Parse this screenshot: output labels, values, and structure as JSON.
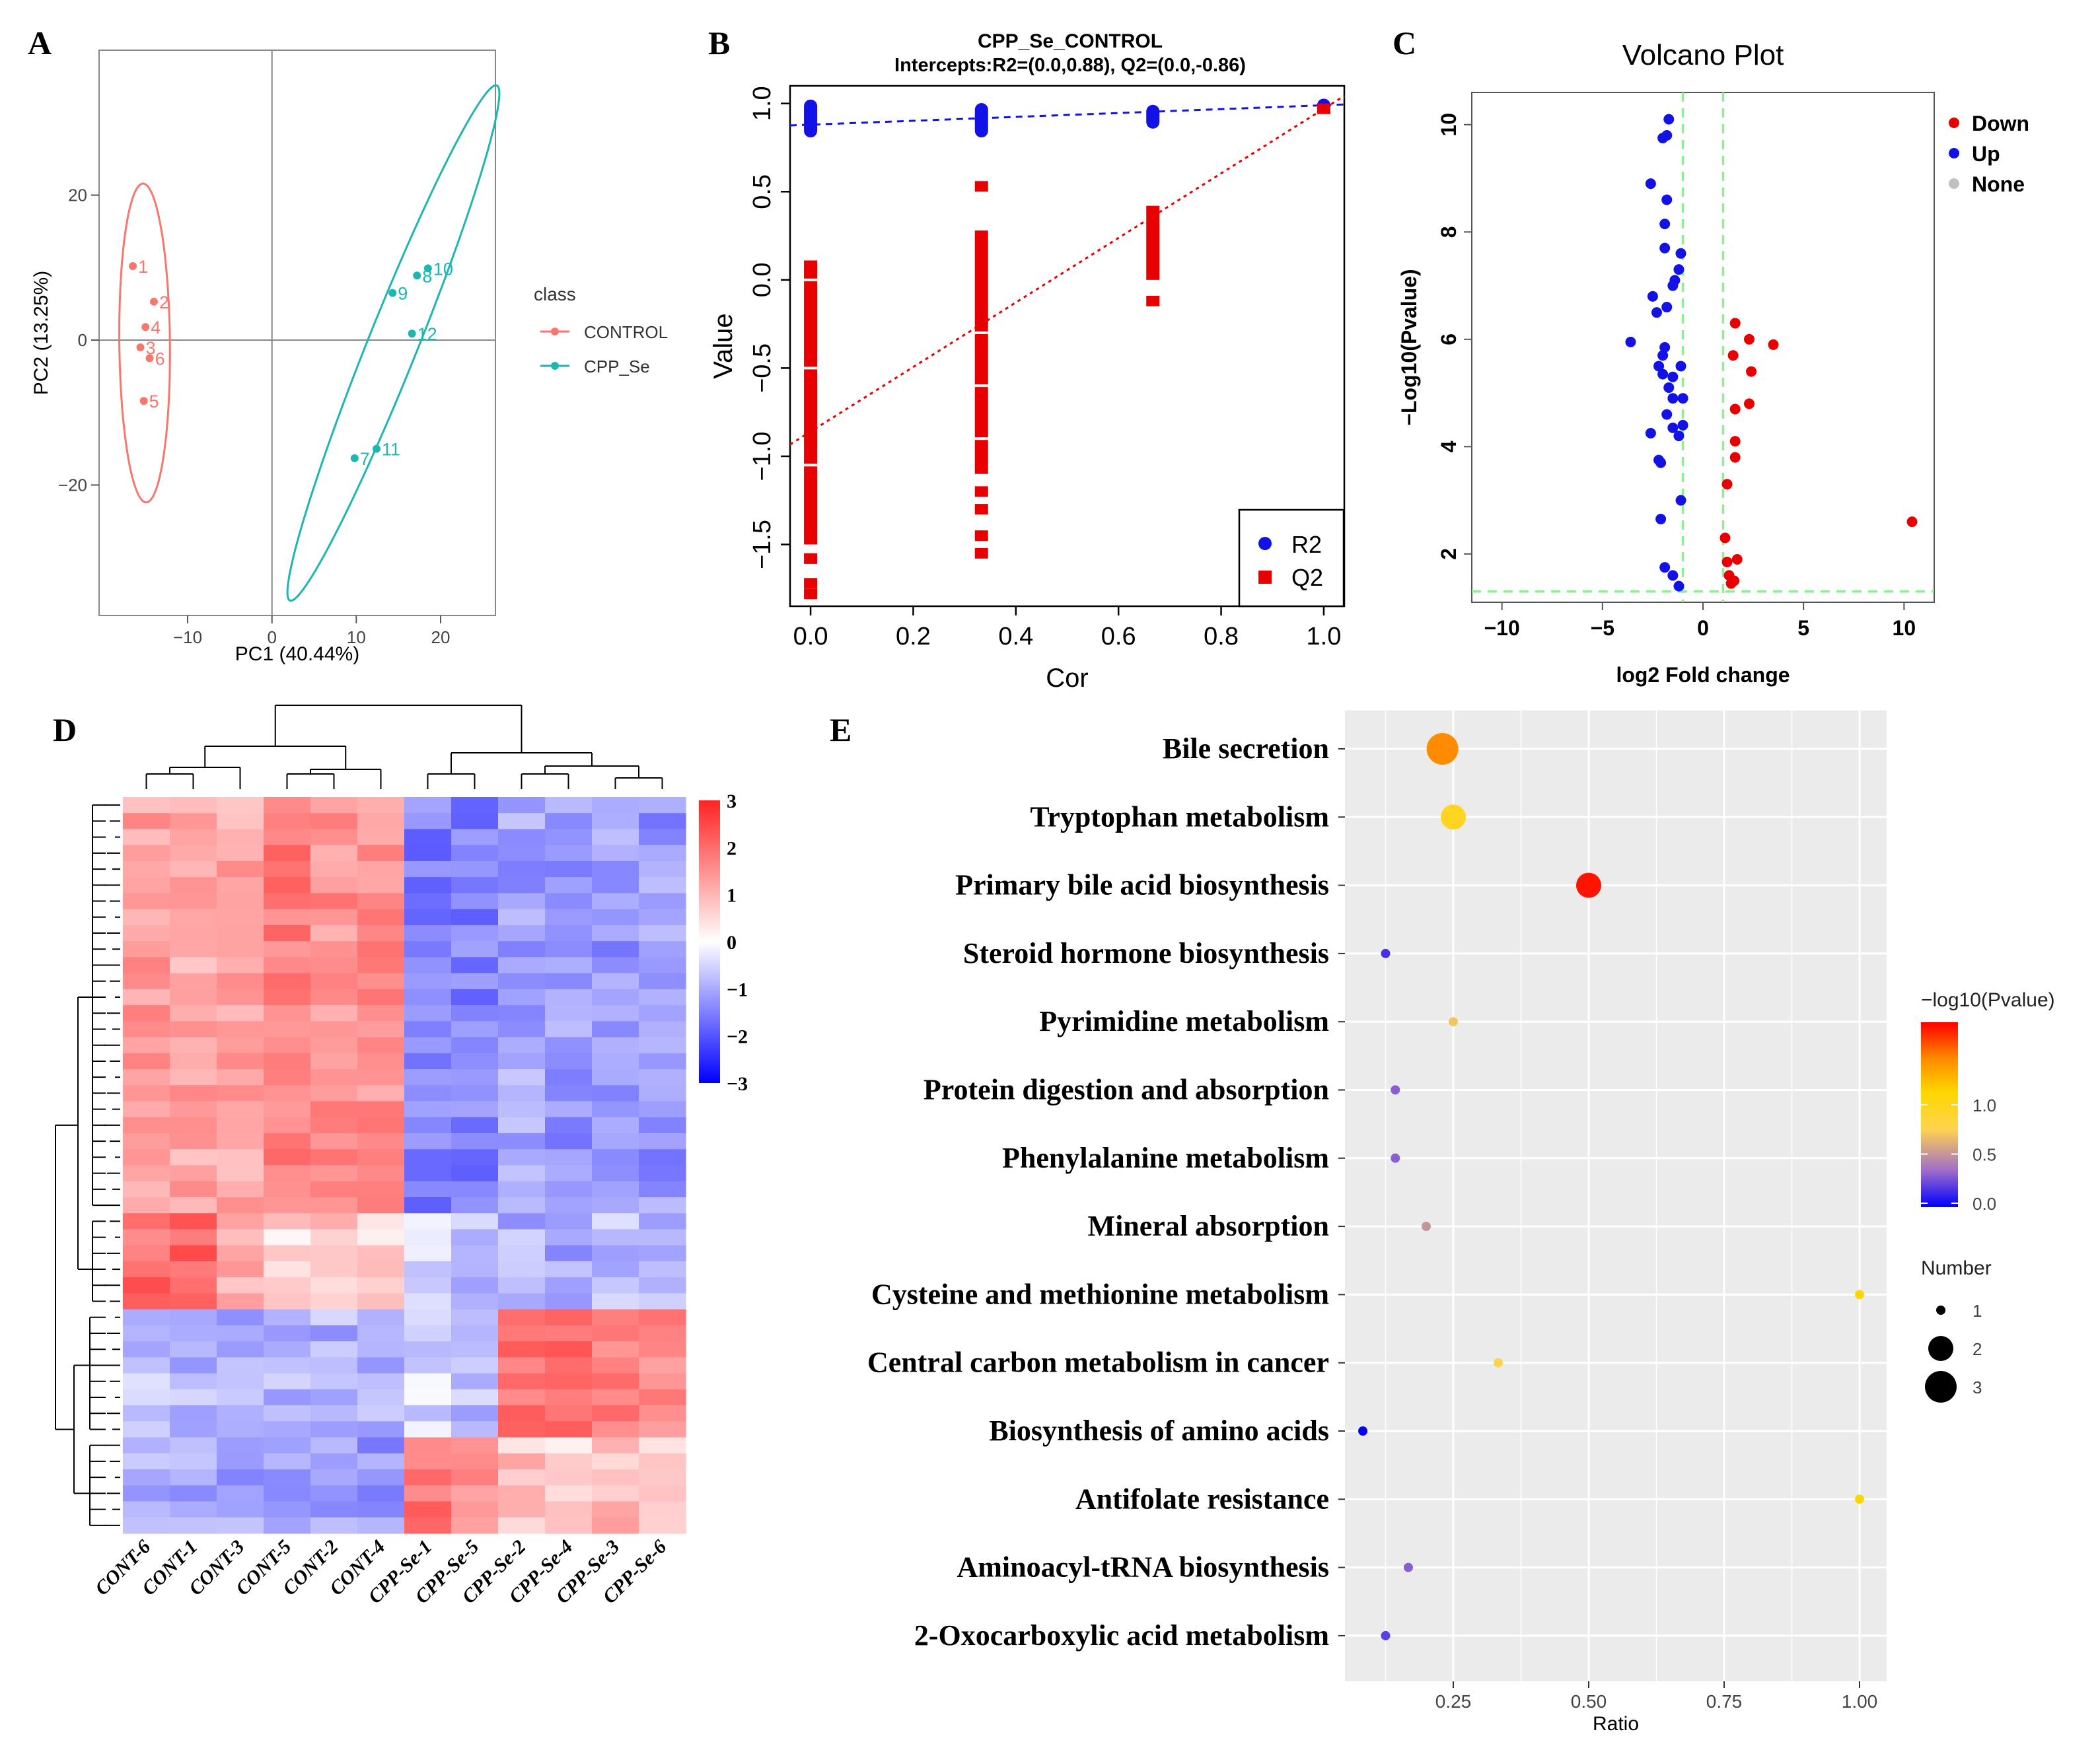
{
  "panels": {
    "a": "A",
    "b": "B",
    "c": "C",
    "d": "D",
    "e": "E"
  },
  "colors": {
    "control": "#F8766D",
    "cpp": "#1FB5B0",
    "blue": "#1212E6",
    "red": "#E80000",
    "green": "#90EE90",
    "gray": "#C0C0C0",
    "panel_bg": "#EBEBEB",
    "grid": "#FFFFFF"
  },
  "chart_data": [
    {
      "id": "pca",
      "type": "scatter",
      "title": "",
      "xlabel": "PC1 (40.44%)",
      "ylabel": "PC2 (13.25%)",
      "xlim": [
        -20.5,
        26.5
      ],
      "ylim": [
        -38,
        40
      ],
      "xticks": [
        -10,
        0,
        10,
        20
      ],
      "yticks": [
        -20,
        0,
        20
      ],
      "legend_title": "class",
      "series": [
        {
          "name": "CONTROL",
          "color": "#F8766D",
          "points": [
            {
              "label": "1",
              "x": -16.5,
              "y": 10.2
            },
            {
              "label": "2",
              "x": -14.0,
              "y": 5.3
            },
            {
              "label": "3",
              "x": -15.6,
              "y": -1.0
            },
            {
              "label": "4",
              "x": -15.0,
              "y": 1.8
            },
            {
              "label": "5",
              "x": -15.2,
              "y": -8.4
            },
            {
              "label": "6",
              "x": -14.5,
              "y": -2.5
            }
          ],
          "ellipse": {
            "cx": -15.1,
            "cy": -0.4,
            "a": 22.0,
            "b": 3.0,
            "angle_deg": 90.5
          }
        },
        {
          "name": "CPP_Se",
          "color": "#1FB5B0",
          "points": [
            {
              "label": "7",
              "x": 9.8,
              "y": -16.3
            },
            {
              "label": "8",
              "x": 17.2,
              "y": 8.9
            },
            {
              "label": "9",
              "x": 14.3,
              "y": 6.5
            },
            {
              "label": "10",
              "x": 18.5,
              "y": 9.9
            },
            {
              "label": "11",
              "x": 12.4,
              "y": -15.0
            },
            {
              "label": "12",
              "x": 16.6,
              "y": 0.9
            }
          ],
          "ellipse": {
            "cx": 14.4,
            "cy": -0.4,
            "a": 37.6,
            "b": 3.0,
            "angle_deg": 71.0
          }
        }
      ]
    },
    {
      "id": "permutation",
      "type": "scatter",
      "title": "CPP_Se_CONTROL",
      "subtitle": "Intercepts:R2=(0.0,0.88), Q2=(0.0,-0.86)",
      "xlabel": "Cor",
      "ylabel": "Value",
      "xlim": [
        -0.04,
        1.04
      ],
      "ylim": [
        -1.85,
        1.1
      ],
      "xtick_labels": [
        "0.0",
        "0.2",
        "0.4",
        "0.6",
        "0.8",
        "1.0"
      ],
      "ytick_labels": [
        "-1.5",
        "-1.0",
        "-0.5",
        "0.0",
        "0.5",
        "1.0"
      ],
      "series": [
        {
          "name": "R2",
          "color": "#1212E6",
          "shape": "circle",
          "ranges": [
            {
              "x": 0.0,
              "from": 0.83,
              "to": 1.0
            },
            {
              "x": 0.333,
              "from": 0.83,
              "to": 0.98
            },
            {
              "x": 0.667,
              "from": 0.88,
              "to": 0.97
            }
          ],
          "points": [
            {
              "x": 1.0,
              "y": 0.99
            }
          ],
          "fit": {
            "intercept": 0.88,
            "slope": 0.11
          }
        },
        {
          "name": "Q2",
          "color": "#E80000",
          "shape": "square",
          "ranges": [
            {
              "x": 0.0,
              "from": -1.5,
              "to": 0.11
            },
            {
              "x": 0.333,
              "from": -1.1,
              "to": 0.28
            },
            {
              "x": 0.667,
              "from": 0.0,
              "to": 0.42
            }
          ],
          "points": [
            {
              "x": 0.0,
              "y": -1.58
            },
            {
              "x": 0.0,
              "y": -1.72
            },
            {
              "x": 0.0,
              "y": -1.78
            },
            {
              "x": 0.333,
              "y": -1.2
            },
            {
              "x": 0.333,
              "y": -1.3
            },
            {
              "x": 0.333,
              "y": -1.45
            },
            {
              "x": 0.333,
              "y": -1.55
            },
            {
              "x": 0.333,
              "y": 0.53
            },
            {
              "x": 0.667,
              "y": -0.12
            },
            {
              "x": 1.0,
              "y": 0.97
            }
          ],
          "fit": {
            "intercept": -0.86,
            "slope": 1.83
          }
        }
      ]
    },
    {
      "id": "volcano",
      "type": "scatter",
      "title": "Volcano Plot",
      "xlabel": "log2 Fold change",
      "ylabel": "-Log10(Pvalue)",
      "xlim": [
        -11.5,
        11.5
      ],
      "ylim": [
        1.1,
        10.6
      ],
      "xticks": [
        -10,
        -5,
        0,
        5,
        10
      ],
      "yticks": [
        2,
        4,
        6,
        8,
        10
      ],
      "thresholds": {
        "x": [
          -1,
          1
        ],
        "y": 1.3
      },
      "legend": [
        {
          "name": "Down",
          "color": "#E80000"
        },
        {
          "name": "Up",
          "color": "#1212E6"
        },
        {
          "name": "None",
          "color": "#C0C0C0"
        }
      ],
      "series": [
        {
          "name": "Down",
          "color": "#E80000",
          "points": [
            [
              1.6,
              6.3
            ],
            [
              2.3,
              6.0
            ],
            [
              3.5,
              5.9
            ],
            [
              1.5,
              5.7
            ],
            [
              2.4,
              5.4
            ],
            [
              2.3,
              4.8
            ],
            [
              1.6,
              4.7
            ],
            [
              1.6,
              4.1
            ],
            [
              1.6,
              3.8
            ],
            [
              1.2,
              3.3
            ],
            [
              10.4,
              2.6
            ],
            [
              1.1,
              2.3
            ],
            [
              1.7,
              1.9
            ],
            [
              1.2,
              1.85
            ],
            [
              1.3,
              1.6
            ],
            [
              1.55,
              1.5
            ],
            [
              1.4,
              1.45
            ]
          ]
        },
        {
          "name": "Up",
          "color": "#1212E6",
          "points": [
            [
              -1.7,
              10.1
            ],
            [
              -1.8,
              9.8
            ],
            [
              -2.0,
              9.75
            ],
            [
              -2.6,
              8.9
            ],
            [
              -1.8,
              8.6
            ],
            [
              -1.9,
              8.15
            ],
            [
              -1.9,
              7.7
            ],
            [
              -1.1,
              7.6
            ],
            [
              -1.2,
              7.3
            ],
            [
              -1.4,
              7.1
            ],
            [
              -1.5,
              7.0
            ],
            [
              -2.5,
              6.8
            ],
            [
              -1.8,
              6.6
            ],
            [
              -2.3,
              6.5
            ],
            [
              -3.6,
              5.95
            ],
            [
              -1.9,
              5.85
            ],
            [
              -2.0,
              5.7
            ],
            [
              -1.1,
              5.5
            ],
            [
              -2.2,
              5.5
            ],
            [
              -2.0,
              5.35
            ],
            [
              -1.5,
              5.3
            ],
            [
              -1.7,
              5.1
            ],
            [
              -1.5,
              4.9
            ],
            [
              -1.0,
              4.9
            ],
            [
              -1.8,
              4.6
            ],
            [
              -1.0,
              4.4
            ],
            [
              -1.5,
              4.35
            ],
            [
              -2.6,
              4.25
            ],
            [
              -1.2,
              4.2
            ],
            [
              -2.2,
              3.75
            ],
            [
              -2.1,
              3.7
            ],
            [
              -1.1,
              3.0
            ],
            [
              -2.1,
              2.65
            ],
            [
              -1.9,
              1.75
            ],
            [
              -1.5,
              1.6
            ],
            [
              -1.2,
              1.4
            ]
          ]
        }
      ]
    },
    {
      "id": "heatmap",
      "type": "heatmap",
      "columns": [
        "CONT-6",
        "CONT-1",
        "CONT-3",
        "CONT-5",
        "CONT-2",
        "CONT-4",
        "CPP-Se-1",
        "CPP-Se-5",
        "CPP-Se-2",
        "CPP-Se-4",
        "CPP-Se-3",
        "CPP-Se-6"
      ],
      "n_rows": 46,
      "color_range": [
        -3,
        3
      ],
      "colorbar_ticks": [
        3,
        2,
        1,
        0,
        -1,
        -2,
        -3
      ],
      "colorbar_labels": [
        "3",
        "2",
        "1",
        "0",
        "-1",
        "-2",
        "-3"
      ],
      "row_blocks": [
        {
          "rows": 26,
          "pattern": [
            1.3,
            1.2,
            1.2,
            1.8,
            1.5,
            1.5,
            -1.5,
            -1.5,
            -1.1,
            -1.2,
            -1.2,
            -1.2
          ]
        },
        {
          "rows": 6,
          "pattern": [
            2.0,
            2.1,
            1.2,
            0.5,
            0.7,
            0.5,
            -0.5,
            -0.7,
            -0.9,
            -1.1,
            -0.8,
            -0.9
          ]
        },
        {
          "rows": 8,
          "pattern": [
            -0.8,
            -0.9,
            -0.9,
            -0.9,
            -0.9,
            -1.0,
            -0.5,
            -0.8,
            2.0,
            1.9,
            1.6,
            1.5
          ]
        },
        {
          "rows": 6,
          "pattern": [
            -1.0,
            -1.0,
            -1.1,
            -1.0,
            -1.1,
            -1.2,
            1.8,
            1.6,
            0.8,
            0.5,
            0.9,
            0.4
          ]
        }
      ]
    },
    {
      "id": "enrichment",
      "type": "scatter",
      "xlabel": "Ratio",
      "xlim": [
        0.05,
        1.05
      ],
      "xticks": [
        0.25,
        0.5,
        0.75,
        1.0
      ],
      "xtick_labels": [
        "0.25",
        "0.50",
        "0.75",
        "1.00"
      ],
      "color_legend_title": "-log10(Pvalue)",
      "color_ticks": [
        "1.0",
        "0.5",
        "0.0"
      ],
      "size_legend_title": "Number",
      "size_legend": [
        "1",
        "2",
        "3"
      ],
      "pathways": [
        {
          "name": "Bile secretion",
          "ratio": 0.23,
          "logp": 1.45,
          "number": 3
        },
        {
          "name": "Tryptophan metabolism",
          "ratio": 0.25,
          "logp": 0.95,
          "number": 2
        },
        {
          "name": "Primary bile acid biosynthesis",
          "ratio": 0.5,
          "logp": 1.75,
          "number": 2
        },
        {
          "name": "Steroid hormone biosynthesis",
          "ratio": 0.125,
          "logp": 0.15,
          "number": 1
        },
        {
          "name": "Pyrimidine metabolism",
          "ratio": 0.25,
          "logp": 0.7,
          "number": 1
        },
        {
          "name": "Protein digestion and absorption",
          "ratio": 0.143,
          "logp": 0.3,
          "number": 1
        },
        {
          "name": "Phenylalanine metabolism",
          "ratio": 0.143,
          "logp": 0.3,
          "number": 1
        },
        {
          "name": "Mineral absorption",
          "ratio": 0.2,
          "logp": 0.5,
          "number": 1
        },
        {
          "name": "Cysteine and methionine metabolism",
          "ratio": 1.0,
          "logp": 1.1,
          "number": 1
        },
        {
          "name": "Central carbon metabolism in cancer",
          "ratio": 0.333,
          "logp": 0.75,
          "number": 1
        },
        {
          "name": "Biosynthesis of amino acids",
          "ratio": 0.083,
          "logp": 0.0,
          "number": 1
        },
        {
          "name": "Antifolate resistance",
          "ratio": 1.0,
          "logp": 1.1,
          "number": 1
        },
        {
          "name": "Aminoacyl-tRNA biosynthesis",
          "ratio": 0.167,
          "logp": 0.3,
          "number": 1
        },
        {
          "name": "2-Oxocarboxylic acid metabolism",
          "ratio": 0.125,
          "logp": 0.2,
          "number": 1
        }
      ]
    }
  ]
}
